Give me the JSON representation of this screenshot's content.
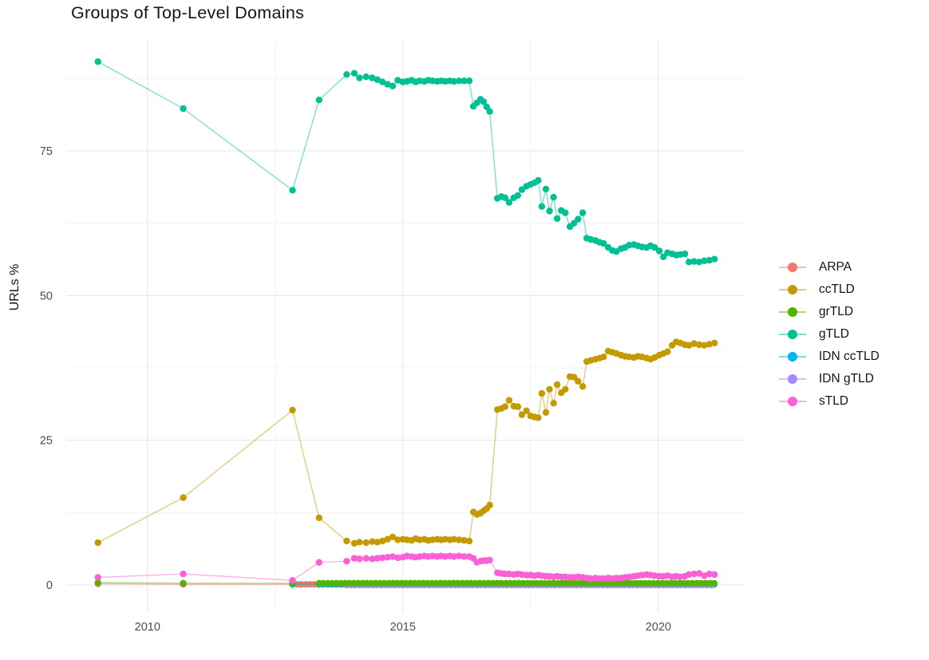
{
  "title": "Groups of Top-Level Domains",
  "y_axis": {
    "label": "URLs %",
    "ticks": [
      0,
      25,
      50,
      75
    ]
  },
  "x_axis": {
    "ticks": [
      2010,
      2015,
      2020
    ]
  },
  "legend": {
    "entries": [
      {
        "label": "ARPA",
        "color": "#F8766D"
      },
      {
        "label": "ccTLD",
        "color": "#C49A00"
      },
      {
        "label": "grTLD",
        "color": "#53B400"
      },
      {
        "label": "gTLD",
        "color": "#00C094"
      },
      {
        "label": "IDN ccTLD",
        "color": "#00B6EB"
      },
      {
        "label": "IDN gTLD",
        "color": "#A58AFF"
      },
      {
        "label": "sTLD",
        "color": "#FB61D7"
      }
    ]
  },
  "chart_data": {
    "type": "line",
    "title": "Groups of Top-Level Domains",
    "xlabel": "",
    "ylabel": "URLs %",
    "xlim": [
      2008.41,
      2021.69
    ],
    "ylim": [
      -4.83,
      94.17
    ],
    "x_ticks": [
      2010,
      2015,
      2020
    ],
    "x_minor_ticks": [
      2012.5,
      2017.5
    ],
    "y_ticks": [
      0,
      25,
      50,
      75
    ],
    "y_minor_ticks": [
      12.5,
      37.5,
      62.5,
      87.5
    ],
    "grid": true,
    "legend_position": "right",
    "point_radius": 4.2,
    "line_opacity": 0.5,
    "series": [
      {
        "name": "ARPA",
        "color": "#F8766D",
        "points": [
          [
            2009.03,
            0.2
          ],
          [
            2010.7,
            0.1
          ]
        ],
        "flat": {
          "from": 2012.84,
          "to": 2021.1,
          "step": 0.085,
          "value": 0.1
        }
      },
      {
        "name": "IDN ccTLD",
        "color": "#00B6EB",
        "points": [
          [
            2012.84,
            0.1
          ]
        ],
        "flat": {
          "from": 2013.36,
          "to": 2021.1,
          "step": 0.085,
          "value": 0.1
        }
      },
      {
        "name": "IDN gTLD",
        "color": "#A58AFF",
        "points": [],
        "flat": {
          "from": 2013.9,
          "to": 2021.1,
          "step": 0.085,
          "value": 0.0
        }
      },
      {
        "name": "ccTLD",
        "color": "#C49A00",
        "points": [
          [
            2009.03,
            7.3
          ],
          [
            2010.7,
            15.1
          ],
          [
            2012.84,
            30.2
          ],
          [
            2013.36,
            11.6
          ],
          [
            2013.9,
            7.6
          ],
          [
            2014.05,
            7.2
          ],
          [
            2014.15,
            7.4
          ],
          [
            2014.28,
            7.3
          ],
          [
            2014.4,
            7.5
          ],
          [
            2014.5,
            7.4
          ],
          [
            2014.6,
            7.6
          ],
          [
            2014.7,
            7.9
          ],
          [
            2014.8,
            8.3
          ],
          [
            2014.9,
            7.8
          ],
          [
            2015,
            7.9
          ],
          [
            2015.08,
            7.8
          ],
          [
            2015.17,
            7.7
          ],
          [
            2015.25,
            8
          ],
          [
            2015.33,
            7.8
          ],
          [
            2015.42,
            7.9
          ],
          [
            2015.5,
            7.7
          ],
          [
            2015.58,
            7.8
          ],
          [
            2015.67,
            7.9
          ],
          [
            2015.75,
            7.8
          ],
          [
            2015.83,
            7.9
          ],
          [
            2015.92,
            7.8
          ],
          [
            2016,
            7.9
          ],
          [
            2016.1,
            7.8
          ],
          [
            2016.2,
            7.7
          ],
          [
            2016.3,
            7.6
          ],
          [
            2016.38,
            12.6
          ],
          [
            2016.45,
            12.2
          ],
          [
            2016.52,
            12.4
          ],
          [
            2016.58,
            12.8
          ],
          [
            2016.64,
            13.2
          ],
          [
            2016.7,
            13.8
          ],
          [
            2016.85,
            30.3
          ],
          [
            2016.93,
            30.5
          ],
          [
            2017,
            30.8
          ],
          [
            2017.08,
            31.9
          ],
          [
            2017.17,
            30.9
          ],
          [
            2017.25,
            30.8
          ],
          [
            2017.33,
            29.4
          ],
          [
            2017.42,
            30.1
          ],
          [
            2017.5,
            29.2
          ],
          [
            2017.58,
            29
          ],
          [
            2017.65,
            28.9
          ],
          [
            2017.72,
            33.1
          ],
          [
            2017.8,
            29.8
          ],
          [
            2017.87,
            33.8
          ],
          [
            2017.95,
            31.4
          ],
          [
            2018.02,
            34.6
          ],
          [
            2018.1,
            33.2
          ],
          [
            2018.18,
            33.8
          ],
          [
            2018.27,
            36
          ],
          [
            2018.35,
            35.9
          ],
          [
            2018.43,
            35.2
          ],
          [
            2018.52,
            34.3
          ],
          [
            2018.6,
            38.6
          ],
          [
            2018.68,
            38.8
          ],
          [
            2018.77,
            39
          ],
          [
            2018.85,
            39.2
          ],
          [
            2018.93,
            39.4
          ],
          [
            2019.02,
            40.4
          ],
          [
            2019.1,
            40.2
          ],
          [
            2019.18,
            40
          ],
          [
            2019.27,
            39.7
          ],
          [
            2019.35,
            39.5
          ],
          [
            2019.43,
            39.4
          ],
          [
            2019.52,
            39.3
          ],
          [
            2019.6,
            39.5
          ],
          [
            2019.68,
            39.4
          ],
          [
            2019.77,
            39.2
          ],
          [
            2019.85,
            39
          ],
          [
            2019.93,
            39.3
          ],
          [
            2020.02,
            39.7
          ],
          [
            2020.1,
            40
          ],
          [
            2020.18,
            40.3
          ],
          [
            2020.27,
            41.4
          ],
          [
            2020.35,
            42
          ],
          [
            2020.43,
            41.8
          ],
          [
            2020.52,
            41.5
          ],
          [
            2020.6,
            41.4
          ],
          [
            2020.7,
            41.7
          ],
          [
            2020.8,
            41.5
          ],
          [
            2020.9,
            41.4
          ],
          [
            2021,
            41.6
          ],
          [
            2021.1,
            41.8
          ]
        ]
      },
      {
        "name": "gTLD",
        "color": "#00C094",
        "points": [
          [
            2009.03,
            90.4
          ],
          [
            2010.7,
            82.3
          ],
          [
            2012.84,
            68.2
          ],
          [
            2013.36,
            83.8
          ],
          [
            2013.9,
            88.2
          ],
          [
            2014.05,
            88.4
          ],
          [
            2014.15,
            87.6
          ],
          [
            2014.28,
            87.8
          ],
          [
            2014.4,
            87.6
          ],
          [
            2014.5,
            87.3
          ],
          [
            2014.6,
            86.9
          ],
          [
            2014.7,
            86.5
          ],
          [
            2014.8,
            86.2
          ],
          [
            2014.9,
            87.2
          ],
          [
            2015,
            86.9
          ],
          [
            2015.08,
            87
          ],
          [
            2015.17,
            87.2
          ],
          [
            2015.25,
            86.9
          ],
          [
            2015.33,
            87.1
          ],
          [
            2015.42,
            87
          ],
          [
            2015.5,
            87.2
          ],
          [
            2015.58,
            87.1
          ],
          [
            2015.67,
            87
          ],
          [
            2015.75,
            87.1
          ],
          [
            2015.83,
            87
          ],
          [
            2015.92,
            87.1
          ],
          [
            2016,
            87
          ],
          [
            2016.1,
            87.1
          ],
          [
            2016.2,
            87.1
          ],
          [
            2016.3,
            87.1
          ],
          [
            2016.38,
            82.7
          ],
          [
            2016.45,
            83.3
          ],
          [
            2016.52,
            83.9
          ],
          [
            2016.58,
            83.5
          ],
          [
            2016.64,
            82.6
          ],
          [
            2016.7,
            81.8
          ],
          [
            2016.85,
            66.8
          ],
          [
            2016.93,
            67.1
          ],
          [
            2017,
            66.9
          ],
          [
            2017.08,
            66.1
          ],
          [
            2017.17,
            66.9
          ],
          [
            2017.25,
            67.3
          ],
          [
            2017.33,
            68.3
          ],
          [
            2017.42,
            68.9
          ],
          [
            2017.5,
            69.2
          ],
          [
            2017.58,
            69.5
          ],
          [
            2017.65,
            69.9
          ],
          [
            2017.72,
            65.4
          ],
          [
            2017.8,
            68.4
          ],
          [
            2017.87,
            64.6
          ],
          [
            2017.95,
            67
          ],
          [
            2018.02,
            63.3
          ],
          [
            2018.1,
            64.7
          ],
          [
            2018.18,
            64.3
          ],
          [
            2018.27,
            61.9
          ],
          [
            2018.35,
            62.5
          ],
          [
            2018.43,
            63.2
          ],
          [
            2018.52,
            64.3
          ],
          [
            2018.6,
            59.9
          ],
          [
            2018.68,
            59.7
          ],
          [
            2018.77,
            59.5
          ],
          [
            2018.85,
            59.2
          ],
          [
            2018.93,
            59
          ],
          [
            2019.02,
            58.3
          ],
          [
            2019.1,
            57.8
          ],
          [
            2019.18,
            57.6
          ],
          [
            2019.27,
            58.1
          ],
          [
            2019.35,
            58.3
          ],
          [
            2019.43,
            58.7
          ],
          [
            2019.52,
            58.8
          ],
          [
            2019.6,
            58.6
          ],
          [
            2019.68,
            58.4
          ],
          [
            2019.77,
            58.3
          ],
          [
            2019.85,
            58.6
          ],
          [
            2019.93,
            58.3
          ],
          [
            2020.02,
            57.7
          ],
          [
            2020.1,
            56.7
          ],
          [
            2020.18,
            57.4
          ],
          [
            2020.27,
            57.2
          ],
          [
            2020.35,
            57
          ],
          [
            2020.43,
            57.1
          ],
          [
            2020.52,
            57.2
          ],
          [
            2020.6,
            55.8
          ],
          [
            2020.7,
            55.9
          ],
          [
            2020.8,
            55.8
          ],
          [
            2020.9,
            56
          ],
          [
            2021,
            56.1
          ],
          [
            2021.1,
            56.3
          ]
        ]
      },
      {
        "name": "grTLD",
        "color": "#53B400",
        "points": [
          [
            2009.03,
            0.4
          ],
          [
            2010.7,
            0.3
          ],
          [
            2012.84,
            0.3
          ]
        ],
        "flat": {
          "from": 2013.36,
          "to": 2021.1,
          "step": 0.085,
          "value": 0.3
        }
      },
      {
        "name": "sTLD",
        "color": "#FB61D7",
        "points": [
          [
            2009.03,
            1.3
          ],
          [
            2010.7,
            1.9
          ],
          [
            2012.84,
            0.8
          ],
          [
            2013.36,
            3.9
          ],
          [
            2013.9,
            4.1
          ],
          [
            2014.05,
            4.6
          ],
          [
            2014.15,
            4.5
          ],
          [
            2014.28,
            4.6
          ],
          [
            2014.4,
            4.5
          ],
          [
            2014.5,
            4.6
          ],
          [
            2014.6,
            4.7
          ],
          [
            2014.7,
            4.8
          ],
          [
            2014.8,
            4.9
          ],
          [
            2014.9,
            4.7
          ],
          [
            2015,
            4.8
          ],
          [
            2015.08,
            5
          ],
          [
            2015.17,
            4.9
          ],
          [
            2015.25,
            4.8
          ],
          [
            2015.33,
            4.9
          ],
          [
            2015.42,
            5
          ],
          [
            2015.5,
            4.9
          ],
          [
            2015.58,
            5
          ],
          [
            2015.67,
            4.9
          ],
          [
            2015.75,
            5
          ],
          [
            2015.83,
            4.9
          ],
          [
            2015.92,
            5
          ],
          [
            2016,
            4.9
          ],
          [
            2016.1,
            5
          ],
          [
            2016.2,
            4.9
          ],
          [
            2016.3,
            4.9
          ],
          [
            2016.38,
            4.6
          ],
          [
            2016.45,
            3.9
          ],
          [
            2016.52,
            4.1
          ],
          [
            2016.58,
            4.2
          ],
          [
            2016.64,
            4.2
          ],
          [
            2016.7,
            4.3
          ],
          [
            2016.85,
            2.1
          ],
          [
            2016.93,
            2
          ],
          [
            2017,
            1.9
          ],
          [
            2017.08,
            1.9
          ],
          [
            2017.17,
            1.8
          ],
          [
            2017.25,
            1.9
          ],
          [
            2017.33,
            1.8
          ],
          [
            2017.42,
            1.7
          ],
          [
            2017.5,
            1.7
          ],
          [
            2017.58,
            1.6
          ],
          [
            2017.65,
            1.7
          ],
          [
            2017.72,
            1.6
          ],
          [
            2017.8,
            1.5
          ],
          [
            2017.87,
            1.5
          ],
          [
            2017.95,
            1.4
          ],
          [
            2018.02,
            1.5
          ],
          [
            2018.1,
            1.4
          ],
          [
            2018.18,
            1.4
          ],
          [
            2018.27,
            1.3
          ],
          [
            2018.35,
            1.3
          ],
          [
            2018.43,
            1.4
          ],
          [
            2018.52,
            1.3
          ],
          [
            2018.6,
            1.2
          ],
          [
            2018.68,
            1.1
          ],
          [
            2018.77,
            1.2
          ],
          [
            2018.85,
            1.1
          ],
          [
            2018.93,
            1.1
          ],
          [
            2019.02,
            1.2
          ],
          [
            2019.1,
            1.1
          ],
          [
            2019.18,
            1.2
          ],
          [
            2019.27,
            1.2
          ],
          [
            2019.35,
            1.3
          ],
          [
            2019.43,
            1.4
          ],
          [
            2019.52,
            1.5
          ],
          [
            2019.6,
            1.6
          ],
          [
            2019.68,
            1.7
          ],
          [
            2019.77,
            1.8
          ],
          [
            2019.85,
            1.7
          ],
          [
            2019.93,
            1.6
          ],
          [
            2020.02,
            1.5
          ],
          [
            2020.1,
            1.5
          ],
          [
            2020.18,
            1.6
          ],
          [
            2020.27,
            1.4
          ],
          [
            2020.35,
            1.5
          ],
          [
            2020.43,
            1.4
          ],
          [
            2020.52,
            1.5
          ],
          [
            2020.6,
            1.8
          ],
          [
            2020.7,
            1.9
          ],
          [
            2020.8,
            2
          ],
          [
            2020.9,
            1.6
          ],
          [
            2021,
            1.9
          ],
          [
            2021.1,
            1.8
          ]
        ]
      }
    ]
  }
}
